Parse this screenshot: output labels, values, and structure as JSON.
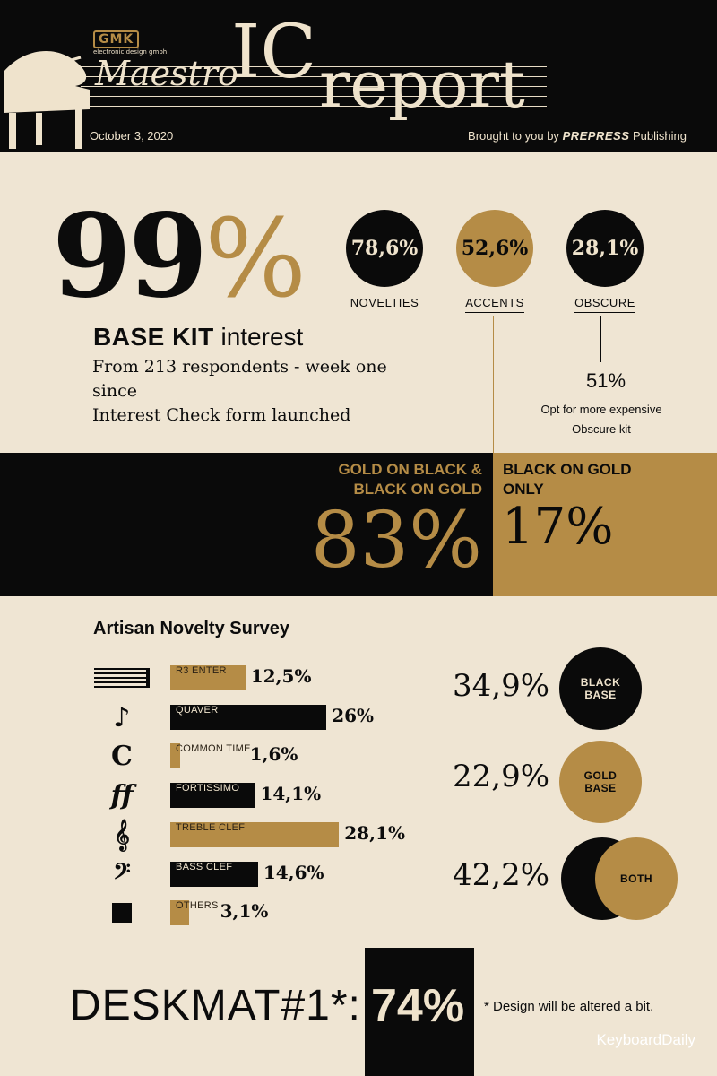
{
  "header": {
    "brand_badge": "GMK",
    "brand_sub": "electronic design gmbh",
    "title_script": "Maestro",
    "title_ic": "IC",
    "title_report": "report",
    "date": "October 3, 2020",
    "credit_prefix": "Brought to you by",
    "credit_brand": "PREPRESS",
    "credit_suffix": "Publishing"
  },
  "interest": {
    "value": "99",
    "pct_sign": "%",
    "label_bold": "BASE KIT",
    "label_rest": "interest",
    "note_line1": "From 213 respondents - week one since",
    "note_line2": "Interest Check form launched"
  },
  "kits": [
    {
      "value": "78,6%",
      "label": "NOVELTIES",
      "style": "black"
    },
    {
      "value": "52,6%",
      "label": "ACCENTS",
      "style": "gold"
    },
    {
      "value": "28,1%",
      "label": "OBSCURE",
      "style": "black"
    }
  ],
  "obscure_note": {
    "value": "51%",
    "line1": "Opt for more expensive",
    "line2": "Obscure kit"
  },
  "colorway": {
    "left_line1": "GOLD ON BLACK &",
    "left_line2": "BLACK ON GOLD",
    "left_pct": "83%",
    "right_line1": "BLACK ON GOLD",
    "right_line2": "ONLY",
    "right_pct": "17%"
  },
  "chart_data": {
    "type": "bar",
    "title": "Artisan Novelty Survey",
    "categories": [
      "R3 ENTER",
      "QUAVER",
      "COMMON TIME",
      "FORTISSIMO",
      "TREBLE CLEF",
      "BASS CLEF",
      "OTHERS"
    ],
    "values": [
      12.5,
      26,
      1.6,
      14.1,
      28.1,
      14.6,
      3.1
    ],
    "value_labels": [
      "12,5%",
      "26%",
      "1,6%",
      "14,1%",
      "28,1%",
      "14,6%",
      "3,1%"
    ],
    "bar_colors": [
      "gold",
      "black",
      "gold",
      "black",
      "gold",
      "black",
      "gold"
    ],
    "icons": [
      "staff-lines-icon",
      "quaver-icon",
      "common-time-icon",
      "fortissimo-icon",
      "treble-clef-icon",
      "bass-clef-icon",
      "square-icon"
    ]
  },
  "icon_glyphs": [
    "",
    "♪",
    "C",
    "ff",
    "𝄞",
    "𝄢",
    "■"
  ],
  "base_survey": [
    {
      "value": "34,9%",
      "line1": "BLACK",
      "line2": "BASE"
    },
    {
      "value": "22,9%",
      "line1": "GOLD",
      "line2": "BASE"
    },
    {
      "value": "42,2%",
      "line1": "BOTH",
      "line2": ""
    }
  ],
  "deskmat": {
    "label": "DESKMAT#1*:",
    "value": "74%",
    "note": "* Design will be altered a bit."
  },
  "watermark": "KeyboardDaily",
  "colors": {
    "black": "#0a0a0a",
    "gold": "#b58c46",
    "cream": "#efe5d3"
  }
}
